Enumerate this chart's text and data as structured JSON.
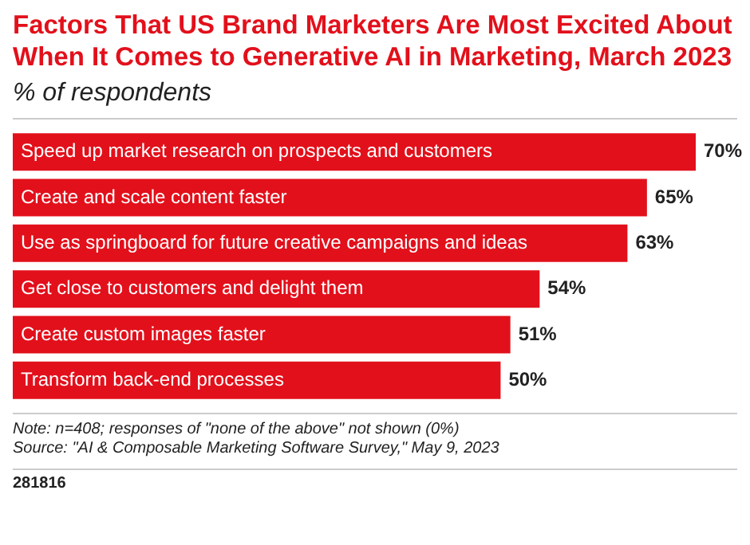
{
  "chart_data": {
    "type": "bar",
    "orientation": "horizontal",
    "title": "Factors That US Brand Marketers Are Most Excited About When It Comes to Generative AI in Marketing, March 2023",
    "subtitle": "% of respondents",
    "categories": [
      "Speed up market research on prospects and customers",
      "Create and scale content faster",
      "Use as springboard for future creative campaigns and ideas",
      "Get close to customers and delight them",
      "Create custom images faster",
      "Transform back-end processes"
    ],
    "values": [
      70,
      65,
      63,
      54,
      51,
      50
    ],
    "value_labels": [
      "70%",
      "65%",
      "63%",
      "54%",
      "51%",
      "50%"
    ],
    "color": "#e2101b",
    "annotations": [
      "Note: n=408; responses of \"none of the above\" not shown (0%)",
      "Source: \"AI & Composable Marketing Software Survey,\" May 9, 2023",
      "281816"
    ]
  }
}
